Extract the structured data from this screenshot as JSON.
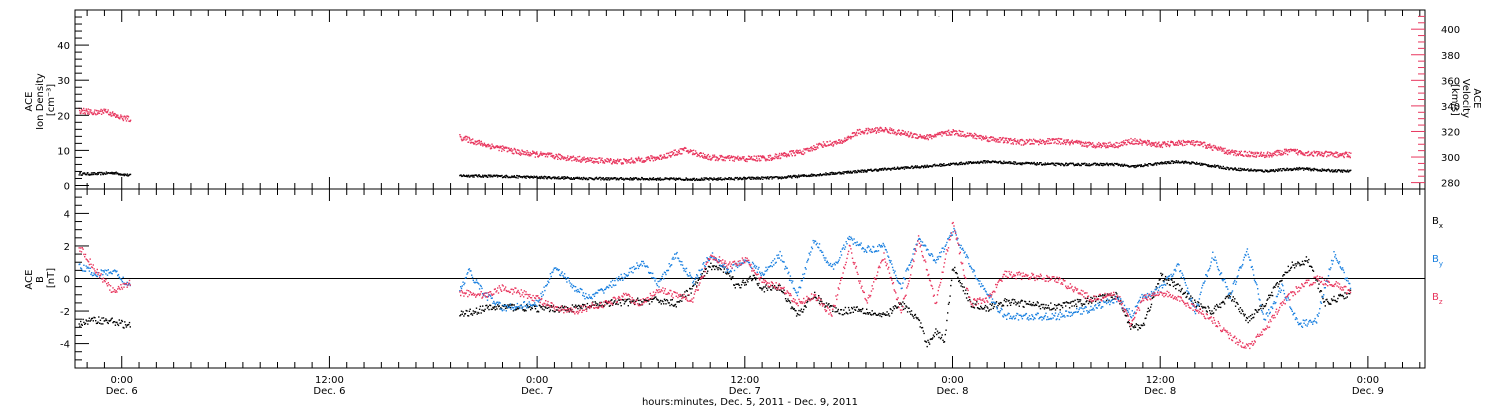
{
  "figure": {
    "xlabel": "hours:minutes, Dec. 5, 2011 - Dec. 9, 2011",
    "x_ticks": [
      {
        "time": "0:00",
        "date": "Dec. 6",
        "hours": 0
      },
      {
        "time": "12:00",
        "date": "Dec. 6",
        "hours": 12
      },
      {
        "time": "0:00",
        "date": "Dec. 7",
        "hours": 24
      },
      {
        "time": "12:00",
        "date": "Dec. 7",
        "hours": 36
      },
      {
        "time": "0:00",
        "date": "Dec. 8",
        "hours": 48
      },
      {
        "time": "12:00",
        "date": "Dec. 8",
        "hours": 60
      },
      {
        "time": "0:00",
        "date": "Dec. 9",
        "hours": 72
      }
    ]
  },
  "chart_data": [
    {
      "type": "scatter",
      "panel": "top",
      "x_unit": "hours relative to Dec. 6 0:00",
      "xlim": [
        -2.7,
        75.3
      ],
      "ylabel_left": [
        "ACE",
        "Ion Density",
        "[cm⁻³]"
      ],
      "ylabel_right": [
        "ACE",
        "Velocity",
        "[km/s]"
      ],
      "left_ylim": [
        -1,
        50
      ],
      "left_ticks": [
        "0",
        "10",
        "20",
        "30",
        "40"
      ],
      "left_tick_values": [
        0,
        10,
        20,
        30,
        40
      ],
      "right_ylim": [
        275,
        415
      ],
      "right_ticks": [
        "280",
        "300",
        "320",
        "340",
        "360",
        "380",
        "400"
      ],
      "right_tick_values": [
        280,
        300,
        320,
        340,
        360,
        380,
        400
      ],
      "grid": false,
      "series": [
        {
          "axis": "left",
          "color": "#000000",
          "x": [
            -2.5,
            -1.5,
            -0.5,
            0.5,
            19.5,
            22,
            24,
            26,
            28,
            30,
            32,
            34,
            36,
            38,
            40,
            42,
            44,
            46,
            48,
            50,
            52,
            54,
            56,
            57.5,
            58.3,
            60,
            61,
            62,
            64,
            66,
            68,
            69.5,
            71
          ],
          "y": [
            3.5,
            3.5,
            3.8,
            3,
            3,
            2.8,
            2.5,
            2.3,
            2.1,
            2.1,
            2,
            2,
            2.2,
            2.4,
            3.2,
            4,
            4.8,
            5.5,
            6.3,
            7,
            6.5,
            6.2,
            6.2,
            6.2,
            5.5,
            6.5,
            7,
            6.5,
            5,
            4.3,
            5,
            4.5,
            4.2
          ]
        },
        {
          "axis": "right",
          "color": "#e8365e",
          "x": [
            -2.5,
            -1.5,
            -1,
            -0.3,
            0.5,
            19.5,
            21,
            23,
            25,
            27,
            29,
            31,
            32.5,
            34,
            36,
            37.5,
            38.5,
            39.5,
            40.3,
            41.5,
            42.5,
            44,
            45.5,
            46.5,
            48,
            50,
            52,
            54,
            56,
            57.5,
            58.3,
            60,
            61.5,
            62.5,
            64,
            66,
            67.5,
            69,
            71
          ],
          "y": [
            337,
            335,
            337,
            332,
            330,
            316,
            310,
            304,
            301,
            298,
            297,
            300,
            306,
            300,
            299,
            300,
            303,
            305,
            310,
            312,
            320,
            322,
            318,
            316,
            320,
            315,
            312,
            313,
            310,
            310,
            313,
            310,
            312,
            310,
            304,
            302,
            305,
            303,
            302
          ]
        }
      ]
    },
    {
      "type": "scatter",
      "panel": "bottom",
      "x_unit": "hours relative to Dec. 6 0:00",
      "xlim": [
        -2.7,
        75.3
      ],
      "ylabel": [
        "ACE",
        "B",
        "[nT]"
      ],
      "ylim": [
        -5.5,
        5.5
      ],
      "yticks": [
        "-4",
        "-2",
        "0",
        "2",
        "4"
      ],
      "ytick_values": [
        -4,
        -2,
        0,
        2,
        4
      ],
      "zero_line": 0,
      "grid": false,
      "legend": {
        "placement": "right",
        "entries": [
          "Bx",
          "By",
          "Bz"
        ]
      },
      "series": [
        {
          "name": "Bx",
          "color": "#000000",
          "x": [
            -2.5,
            -1.5,
            -0.5,
            0.5,
            19.5,
            21,
            22,
            24,
            26,
            28,
            29.5,
            31,
            32,
            33,
            34,
            35,
            35.5,
            36.5,
            37,
            38,
            39,
            40,
            40.5,
            41.5,
            42.5,
            44,
            45,
            46,
            46.5,
            47,
            47.5,
            48,
            49,
            50,
            51,
            52,
            54,
            56,
            57.5,
            58.3,
            59,
            60,
            61,
            62,
            63,
            64,
            65,
            66,
            67.5,
            68.5,
            69.5,
            71
          ],
          "y": [
            -2.7,
            -2.5,
            -2.6,
            -2.9,
            -2.2,
            -1.8,
            -1.7,
            -1.8,
            -1.8,
            -1.5,
            -1.4,
            -1.3,
            -1.5,
            -0.5,
            0.8,
            0.5,
            -0.5,
            0.2,
            -0.6,
            -0.5,
            -2.2,
            -1.0,
            -1.5,
            -2.0,
            -1.8,
            -2.3,
            -1.5,
            -2.5,
            -4.0,
            -3.2,
            -3.8,
            0.8,
            -1.5,
            -1.8,
            -1.4,
            -1.5,
            -1.7,
            -1.3,
            -1.0,
            -3.0,
            -2.8,
            0.2,
            -0.5,
            -1.5,
            -2.0,
            -1.0,
            -2.5,
            -1.5,
            0.8,
            1.2,
            -1.5,
            -0.8
          ]
        },
        {
          "name": "By",
          "color": "#1a80e0",
          "x": [
            -2.5,
            -1.5,
            -0.5,
            0.5,
            19.5,
            20,
            21,
            22,
            23,
            24,
            25,
            26,
            27,
            28,
            29,
            30,
            31,
            32,
            33,
            34,
            35,
            36,
            37,
            38,
            39,
            40,
            41,
            42,
            43,
            44,
            45,
            46,
            47,
            48,
            49,
            50,
            51,
            52,
            54,
            56,
            57.5,
            58.3,
            59,
            60,
            61,
            62,
            63,
            64,
            65,
            66,
            67,
            68,
            69,
            70,
            71
          ],
          "y": [
            0.8,
            0.3,
            0.5,
            -0.5,
            -0.8,
            0.5,
            -1.0,
            -1.8,
            -1.6,
            -1.5,
            0.8,
            -0.4,
            -1.2,
            -0.5,
            0.2,
            1.0,
            -0.3,
            1.5,
            -0.2,
            1.5,
            0.5,
            1.2,
            0.3,
            1.5,
            -1.0,
            2.5,
            0.6,
            2.5,
            1.8,
            2.0,
            -0.5,
            2.5,
            1.0,
            3.0,
            0.8,
            -1.0,
            -2.3,
            -2.3,
            -2.3,
            -1.8,
            -1.2,
            -2.2,
            -1.0,
            -0.6,
            0.8,
            -2.0,
            1.5,
            -1.0,
            1.8,
            -2.5,
            -0.5,
            -2.8,
            -2.5,
            1.5,
            -0.5
          ]
        },
        {
          "name": "Bz",
          "color": "#e8365e",
          "x": [
            -2.5,
            -1.5,
            -0.5,
            0.5,
            19.5,
            21,
            22,
            24,
            25,
            26,
            27,
            28,
            29,
            30,
            31,
            32,
            33,
            34,
            35,
            36,
            37,
            38,
            39,
            40,
            41,
            42,
            43,
            44,
            45,
            46,
            47,
            48,
            49,
            50,
            51,
            52,
            54,
            56,
            57.5,
            58.3,
            59,
            60,
            61,
            62,
            63,
            64,
            65,
            66,
            67,
            68,
            69,
            70,
            71
          ],
          "y": [
            2.0,
            0.5,
            -0.8,
            -0.2,
            -0.8,
            -1.0,
            -0.5,
            -1.2,
            -1.8,
            -2.0,
            -1.7,
            -1.5,
            -1.0,
            -1.5,
            -0.6,
            -1.0,
            -1.2,
            1.5,
            0.8,
            1.2,
            -0.2,
            -0.5,
            -1.5,
            -1.0,
            -2.2,
            2.0,
            -1.5,
            1.5,
            -2.0,
            2.5,
            -1.5,
            3.5,
            -1.5,
            -1.2,
            0.3,
            0.2,
            0.0,
            -1.2,
            -1.0,
            -2.8,
            -1.2,
            -0.8,
            -1.2,
            -1.8,
            -2.5,
            -3.5,
            -4.2,
            -3.2,
            -1.5,
            -0.5,
            0.0,
            -0.3,
            -0.8
          ]
        }
      ]
    }
  ]
}
